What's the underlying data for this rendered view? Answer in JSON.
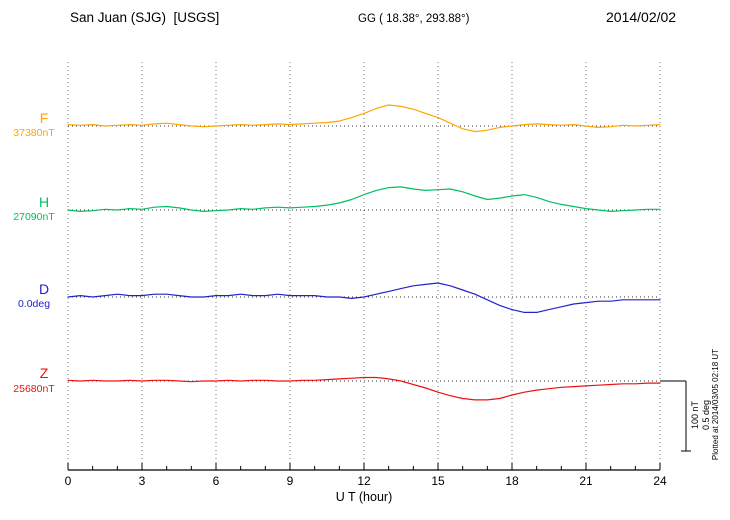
{
  "page": {
    "title": "San Juan (SJG)  [USGS]",
    "coords": "GG ( 18.38°, 293.88°)",
    "date": "2014/02/02",
    "xlabel": "U T (hour)",
    "plotted_at": "Plotted at 2014/03/05 02:18 UT"
  },
  "chart_data": {
    "type": "line",
    "title": "San Juan (SJG)  [USGS]",
    "subtitle": "GG ( 18.38°, 293.88°)",
    "date": "2014/02/02",
    "xlabel": "U T (hour)",
    "xlim": [
      0,
      24
    ],
    "x_ticks": [
      0,
      3,
      6,
      9,
      12,
      15,
      18,
      21,
      24
    ],
    "x_step_hours": 0.5,
    "grid": "dotted vertical at 3h intervals, dotted horizontal baseline per trace",
    "legend_position": "left margin labels",
    "series": [
      {
        "name": "F",
        "unit": "nT",
        "baseline_label": "37380nT",
        "baseline_value": 37380,
        "color": "#FFA500",
        "offsets": [
          2,
          1,
          2,
          0,
          1,
          2,
          1,
          3,
          4,
          2,
          0,
          -1,
          0,
          1,
          2,
          1,
          2,
          3,
          2,
          3,
          4,
          5,
          7,
          12,
          18,
          25,
          30,
          28,
          24,
          18,
          12,
          4,
          -4,
          -8,
          -6,
          -2,
          0,
          2,
          3,
          2,
          1,
          2,
          0,
          -2,
          -1,
          1,
          0,
          1,
          2
        ]
      },
      {
        "name": "H",
        "unit": "nT",
        "baseline_label": "27090nT",
        "baseline_value": 27090,
        "color": "#00C060",
        "offsets": [
          0,
          -2,
          -1,
          1,
          0,
          2,
          1,
          4,
          5,
          3,
          0,
          -2,
          -1,
          0,
          2,
          1,
          3,
          4,
          3,
          4,
          5,
          7,
          10,
          15,
          22,
          28,
          32,
          33,
          30,
          28,
          29,
          30,
          26,
          20,
          15,
          17,
          20,
          22,
          18,
          12,
          8,
          5,
          2,
          0,
          -2,
          -1,
          0,
          1,
          1
        ]
      },
      {
        "name": "D",
        "unit": "deg",
        "baseline_label": "0.0deg",
        "baseline_value": 0.0,
        "color": "#2222CC",
        "offsets": [
          0,
          0.01,
          0,
          0.01,
          0.02,
          0.01,
          0.01,
          0.02,
          0.02,
          0.01,
          0,
          0,
          0.01,
          0.01,
          0.02,
          0.01,
          0.01,
          0.02,
          0.01,
          0.01,
          0.01,
          0,
          0,
          -0.01,
          0,
          0.02,
          0.04,
          0.06,
          0.08,
          0.09,
          0.1,
          0.08,
          0.05,
          0.02,
          -0.02,
          -0.06,
          -0.09,
          -0.11,
          -0.11,
          -0.09,
          -0.07,
          -0.05,
          -0.04,
          -0.03,
          -0.03,
          -0.02,
          -0.02,
          -0.02,
          -0.02
        ]
      },
      {
        "name": "Z",
        "unit": "nT",
        "baseline_label": "25680nT",
        "baseline_value": 25680,
        "color": "#EE1111",
        "offsets": [
          1,
          0,
          1,
          0,
          0,
          1,
          0,
          1,
          1,
          0,
          -1,
          0,
          0,
          1,
          0,
          1,
          1,
          0,
          0,
          1,
          1,
          2,
          3,
          4,
          5,
          5,
          3,
          0,
          -5,
          -10,
          -16,
          -21,
          -25,
          -27,
          -27,
          -25,
          -20,
          -16,
          -13,
          -11,
          -9,
          -8,
          -7,
          -6,
          -5,
          -4,
          -4,
          -3,
          -3
        ]
      }
    ],
    "scale_bar": {
      "label_nT": "100 nT",
      "label_deg": "0.5 deg",
      "nT": 100,
      "deg": 0.5
    },
    "plotted_at": "Plotted at 2014/03/05 02:18 UT"
  }
}
